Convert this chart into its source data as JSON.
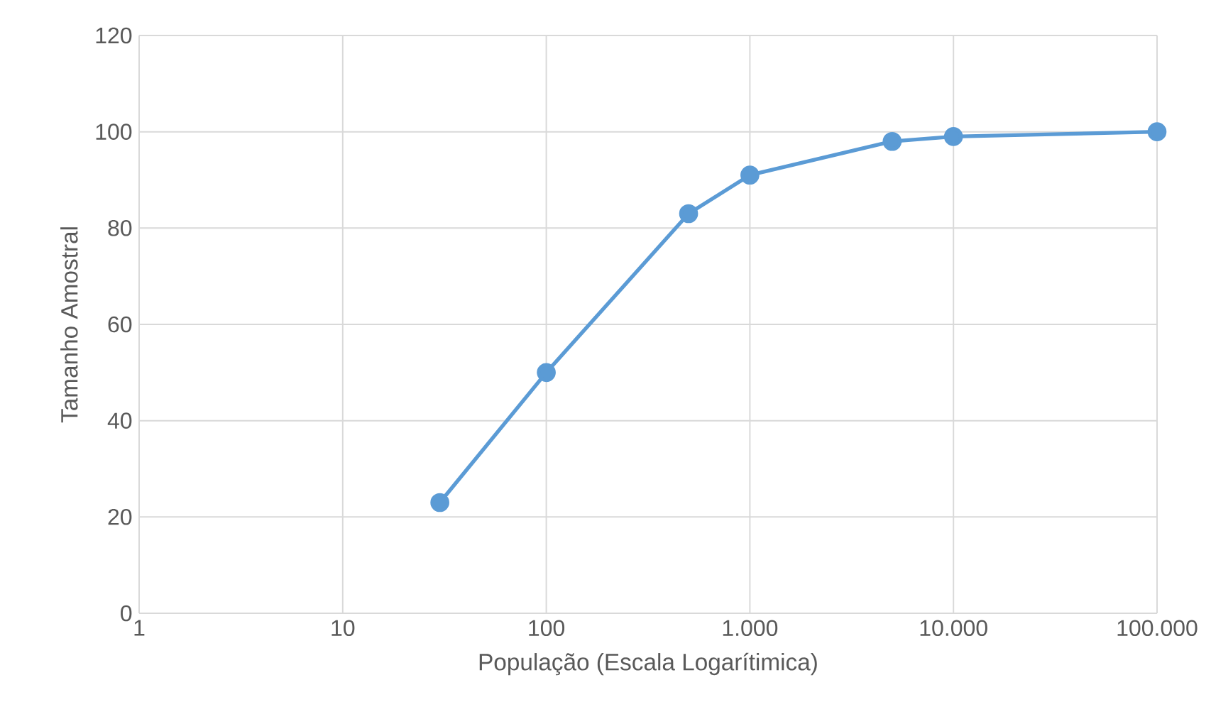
{
  "chart_data": {
    "type": "line",
    "xlabel": "População (Escala Logarítimica)",
    "ylabel": "Tamanho Amostral",
    "log": "x",
    "x": [
      30,
      100,
      500,
      1000,
      5000,
      10000,
      100000
    ],
    "series": [
      {
        "color": "#5b9bd5",
        "values": [
          23,
          50,
          83,
          91,
          98,
          99,
          100
        ]
      }
    ],
    "xlim": [
      1,
      100000
    ],
    "xticks": [
      1,
      10,
      100,
      {
        "value": 1000,
        "label": "1.000"
      },
      {
        "value": 10000,
        "label": "10.000"
      },
      {
        "value": 100000,
        "label": "100.000"
      }
    ],
    "ylim": [
      0,
      120
    ],
    "yticks": [
      0,
      20,
      40,
      60,
      80,
      100,
      120
    ],
    "grid": true,
    "marker": "circle",
    "line_style": "solid"
  }
}
